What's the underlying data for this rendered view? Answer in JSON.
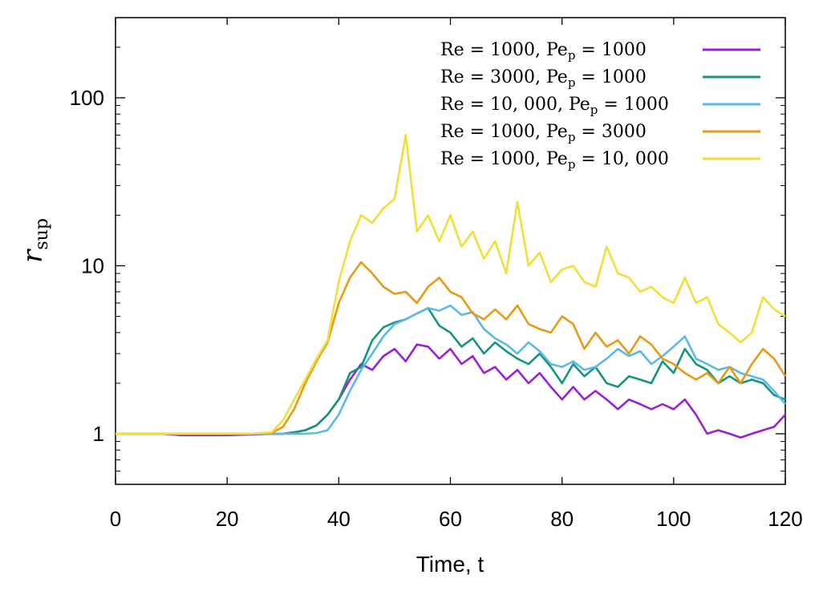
{
  "chart_data": {
    "type": "line",
    "title": "",
    "xlabel": "Time, t",
    "ylabel_main": "r",
    "ylabel_sub": "sup",
    "xlim": [
      0,
      120
    ],
    "ylim": [
      0.5,
      300
    ],
    "yscale": "log",
    "grid": false,
    "legend_position": "top-right",
    "x_ticks": [
      0,
      20,
      40,
      60,
      80,
      100,
      120
    ],
    "x_tick_labels": [
      "0",
      "20",
      "40",
      "60",
      "80",
      "100",
      "120"
    ],
    "y_ticks": [
      1,
      10,
      100
    ],
    "y_tick_labels": [
      "1",
      "10",
      "100"
    ],
    "x": [
      0,
      4,
      8,
      12,
      16,
      20,
      24,
      28,
      30,
      32,
      34,
      36,
      38,
      40,
      42,
      44,
      46,
      48,
      50,
      52,
      54,
      56,
      58,
      60,
      62,
      64,
      66,
      68,
      70,
      72,
      74,
      76,
      78,
      80,
      82,
      84,
      86,
      88,
      90,
      92,
      94,
      96,
      98,
      100,
      102,
      104,
      106,
      108,
      110,
      112,
      114,
      116,
      118,
      120
    ],
    "series": [
      {
        "name": "Re = 1000, Pe_p = 1000",
        "legend_label": "Re = 1000, Pe",
        "legend_sub": "p",
        "legend_tail": " = 1000",
        "color": "#9b1fd6",
        "values": [
          1,
          1,
          1,
          0.98,
          0.98,
          0.98,
          0.99,
          1,
          1,
          1.02,
          1.05,
          1.12,
          1.3,
          1.6,
          2.1,
          2.6,
          2.4,
          2.9,
          3.2,
          2.7,
          3.4,
          3.3,
          2.8,
          3.2,
          2.6,
          2.9,
          2.3,
          2.5,
          2.1,
          2.4,
          2.0,
          2.3,
          1.9,
          1.6,
          1.9,
          1.6,
          1.8,
          1.6,
          1.4,
          1.6,
          1.5,
          1.4,
          1.5,
          1.4,
          1.6,
          1.3,
          1.0,
          1.05,
          1.0,
          0.95,
          1.0,
          1.05,
          1.1,
          1.3
        ]
      },
      {
        "name": "Re = 3000, Pe_p = 1000",
        "legend_label": "Re = 3000, Pe",
        "legend_sub": "p",
        "legend_tail": " = 1000",
        "color": "#14967a",
        "values": [
          1,
          1,
          1,
          1,
          1,
          1,
          1,
          1,
          1,
          1.02,
          1.05,
          1.12,
          1.3,
          1.6,
          2.3,
          2.5,
          3.6,
          4.3,
          4.6,
          4.8,
          5.2,
          5.6,
          4.4,
          4.0,
          3.3,
          3.7,
          3.0,
          3.5,
          3.1,
          2.8,
          2.6,
          3.0,
          2.5,
          2.0,
          2.6,
          2.2,
          2.5,
          2.0,
          1.9,
          2.2,
          2.1,
          2.0,
          2.7,
          2.3,
          3.2,
          2.6,
          2.4,
          2.0,
          2.2,
          2.0,
          2.1,
          2.0,
          1.7,
          1.6
        ]
      },
      {
        "name": "Re = 10,000, Pe_p = 1000",
        "legend_label": "Re = 10, 000, Pe",
        "legend_sub": "p",
        "legend_tail": " = 1000",
        "color": "#5bb8ea",
        "values": [
          1,
          1,
          1,
          1,
          1,
          1,
          1,
          1,
          1,
          1,
          1,
          1.01,
          1.05,
          1.3,
          1.8,
          2.4,
          3.0,
          3.8,
          4.5,
          4.8,
          5.2,
          5.6,
          5.4,
          5.8,
          5.1,
          5.3,
          4.2,
          3.7,
          3.4,
          3.0,
          3.5,
          3.1,
          2.6,
          2.5,
          2.7,
          2.4,
          2.5,
          2.8,
          3.2,
          2.9,
          3.1,
          2.6,
          2.9,
          3.3,
          3.8,
          2.8,
          2.6,
          2.4,
          2.5,
          2.3,
          2.2,
          2.1,
          1.8,
          1.5
        ]
      },
      {
        "name": "Re = 1000, Pe_p = 3000",
        "legend_label": "Re = 1000, Pe",
        "legend_sub": "p",
        "legend_tail": " = 3000",
        "color": "#e89a12",
        "values": [
          1,
          1,
          1,
          1,
          1,
          1,
          1,
          1.01,
          1.1,
          1.4,
          2.0,
          2.7,
          3.5,
          6.0,
          8.5,
          10.5,
          9.0,
          7.5,
          6.8,
          7.0,
          6.0,
          7.5,
          8.5,
          7.0,
          6.5,
          5.2,
          4.8,
          5.5,
          4.8,
          5.8,
          4.5,
          4.2,
          4.0,
          5.0,
          4.5,
          3.2,
          4.0,
          3.3,
          3.6,
          3.0,
          3.8,
          3.4,
          2.8,
          2.6,
          2.3,
          2.1,
          2.3,
          2.0,
          2.5,
          2.0,
          2.6,
          3.2,
          2.8,
          2.2
        ]
      },
      {
        "name": "Re = 1000, Pe_p = 10,000",
        "legend_label": "Re = 1000, Pe",
        "legend_sub": "p",
        "legend_tail": " = 10, 000",
        "color": "#f2de38",
        "values": [
          1,
          1,
          1,
          1,
          1,
          1,
          1,
          1.02,
          1.2,
          1.6,
          2.1,
          2.8,
          3.6,
          8.0,
          14.0,
          20.0,
          18.0,
          22.0,
          25.0,
          60.0,
          16.0,
          20.0,
          14.0,
          20.0,
          13.0,
          16.0,
          11.0,
          14.0,
          9.0,
          24.0,
          10.0,
          12.0,
          8.0,
          9.5,
          10.0,
          8.0,
          7.5,
          13.0,
          9.0,
          8.5,
          7.0,
          7.5,
          6.5,
          6.0,
          8.5,
          6.0,
          6.5,
          4.5,
          4.0,
          3.5,
          4.0,
          6.5,
          5.5,
          5.0
        ]
      }
    ]
  }
}
